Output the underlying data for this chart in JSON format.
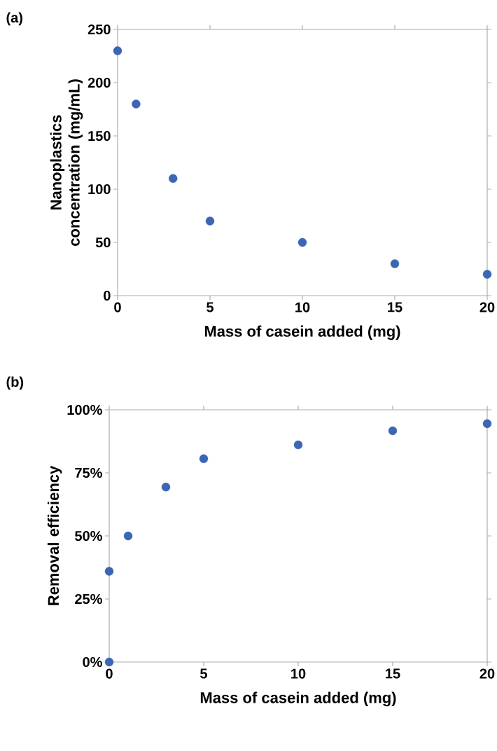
{
  "chart_data": [
    {
      "type": "scatter",
      "title": "(a)",
      "xlabel": "Mass of casein added (mg)",
      "ylabel": "Nanoplastics concentration (mg/mL)",
      "x": [
        0,
        1,
        3,
        5,
        10,
        15,
        20
      ],
      "series": [
        {
          "color": "#3a66b3",
          "values": [
            230,
            180,
            110,
            70,
            50,
            30,
            20
          ]
        }
      ],
      "xlim": [
        0,
        20
      ],
      "xticks": [
        0,
        5,
        10,
        15,
        20
      ],
      "ylim": [
        0,
        250
      ],
      "yticks": [
        0,
        50,
        100,
        150,
        200,
        250
      ],
      "marker": "circle"
    },
    {
      "type": "scatter",
      "title": "(b)",
      "xlabel": "Mass of casein added (mg)",
      "ylabel": "Removal efficiency",
      "x": [
        0,
        0,
        1,
        3,
        5,
        10,
        15,
        20
      ],
      "series": [
        {
          "color": "#3a66b3",
          "values": [
            0,
            36,
            50,
            69.4,
            80.6,
            86.1,
            91.7,
            94.5
          ]
        }
      ],
      "xlim": [
        0,
        20
      ],
      "xticks": [
        0,
        5,
        10,
        15,
        20
      ],
      "ylim": [
        0,
        100
      ],
      "yticks": [
        {
          "value": 0,
          "label": "0%"
        },
        {
          "value": 25,
          "label": "25%"
        },
        {
          "value": 50,
          "label": "50%"
        },
        {
          "value": 75,
          "label": "75%"
        },
        {
          "value": 100,
          "label": "100%"
        }
      ],
      "marker": "circle"
    }
  ]
}
